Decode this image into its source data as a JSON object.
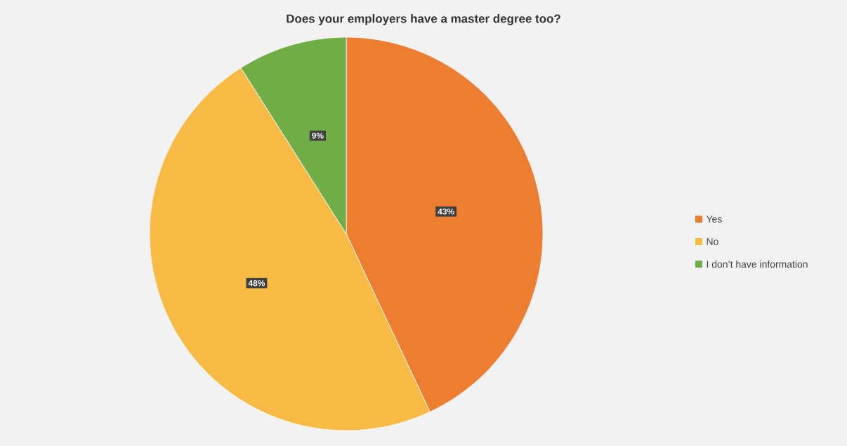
{
  "chart_data": {
    "type": "pie",
    "title": "Does your employers have a master degree too?",
    "categories": [
      "Yes",
      "No",
      "I don’t have information"
    ],
    "values": [
      43,
      48,
      9
    ],
    "colors": [
      "#ed7d31",
      "#f7ba44",
      "#70ad47"
    ],
    "value_labels": [
      "43%",
      "48%",
      "9%"
    ],
    "legend": "right"
  }
}
